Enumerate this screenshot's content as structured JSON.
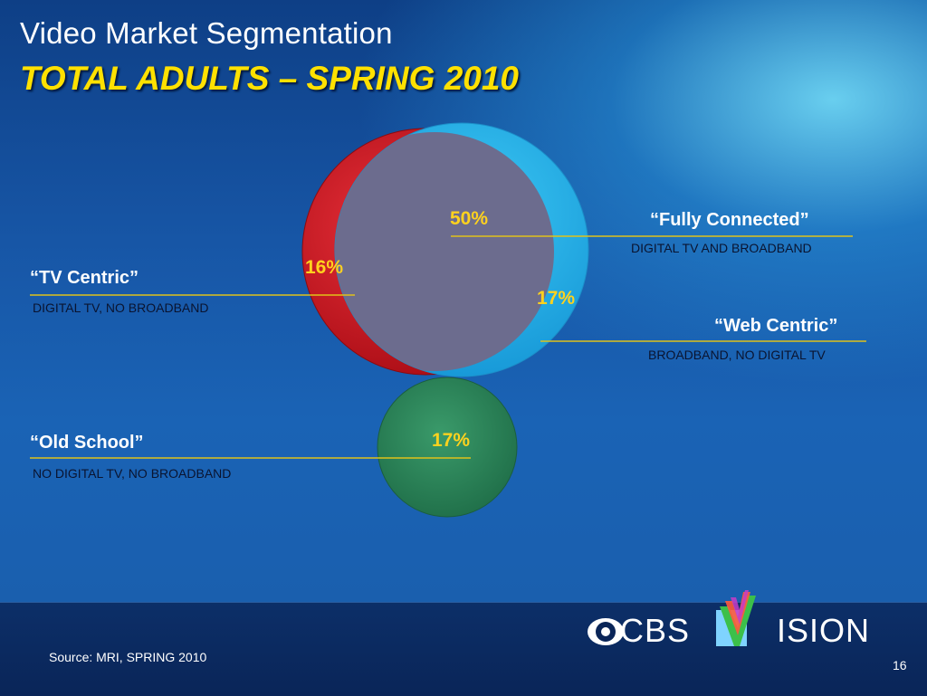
{
  "title": "Video Market Segmentation",
  "subtitle": "TOTAL ADULTS – SPRING 2010",
  "segments": {
    "fully_connected": {
      "name": "“Fully Connected”",
      "desc": "DIGITAL TV AND BROADBAND",
      "pct": "50%"
    },
    "tv_centric": {
      "name": "“TV Centric”",
      "desc": "DIGITAL TV, NO BROADBAND",
      "pct": "16%"
    },
    "web_centric": {
      "name": "“Web Centric”",
      "desc": "BROADBAND, NO DIGITAL TV",
      "pct": "17%"
    },
    "old_school": {
      "name": "“Old School”",
      "desc": "NO DIGITAL TV, NO BROADBAND",
      "pct": "17%"
    }
  },
  "colors": {
    "tv_circle": "#c8101a",
    "web_circle": "#29b5ea",
    "overlap": "#6f6f8f",
    "old_school_circle": "#2e8a5e",
    "leader_line": "#e0c21a",
    "title_accent": "#ffe100"
  },
  "footer": {
    "source": "Source: MRI, SPRING 2010",
    "page_number": "16",
    "logo_cbs": "CBS",
    "logo_vision": "ISION",
    "logo_icon": "cbs-eye-icon"
  }
}
